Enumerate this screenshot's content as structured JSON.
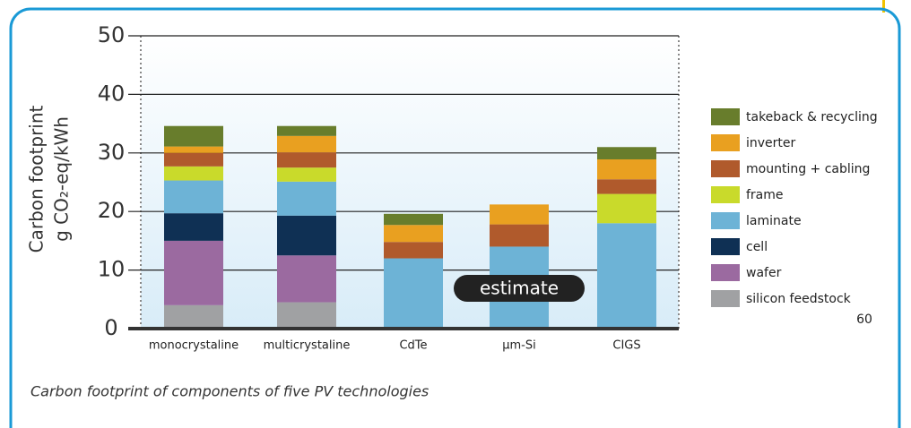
{
  "chart_data": {
    "type": "stacked_bar",
    "ylabel": [
      "Carbon footprint",
      "g CO₂-eq/kWh"
    ],
    "caption": "Carbon footprint of components of five PV technologies",
    "annotation": "estimate",
    "page_number": "60",
    "categories": [
      "monocrystaline",
      "multicrystaline",
      "CdTe",
      "µm-Si",
      "CIGS"
    ],
    "series": [
      {
        "name": "silicon feedstock",
        "color": "#a0a1a3",
        "values": [
          4,
          4.5,
          0,
          0,
          0
        ]
      },
      {
        "name": "wafer",
        "color": "#9b6aa0",
        "values": [
          11,
          8,
          0,
          0,
          0
        ]
      },
      {
        "name": "cell",
        "color": "#0f3054",
        "values": [
          4.7,
          6.8,
          0,
          0,
          0
        ]
      },
      {
        "name": "laminate",
        "color": "#6db3d6",
        "values": [
          5.6,
          5.8,
          12,
          14,
          18
        ]
      },
      {
        "name": "frame",
        "color": "#c9da2b",
        "values": [
          2.4,
          2.4,
          0,
          0,
          5
        ]
      },
      {
        "name": "mounting + cabling",
        "color": "#b05a2c",
        "values": [
          2.3,
          2.6,
          2.8,
          3.8,
          2.5
        ]
      },
      {
        "name": "inverter",
        "color": "#e9a020",
        "values": [
          1.1,
          2.8,
          2.9,
          3.4,
          3.4
        ]
      },
      {
        "name": "takeback & recycling",
        "color": "#687d2c",
        "values": [
          3.5,
          1.7,
          1.9,
          0,
          2.1
        ]
      }
    ],
    "ylim": [
      0,
      50
    ],
    "yticks": [
      0,
      10,
      20,
      30,
      40,
      50
    ],
    "grid": true
  }
}
